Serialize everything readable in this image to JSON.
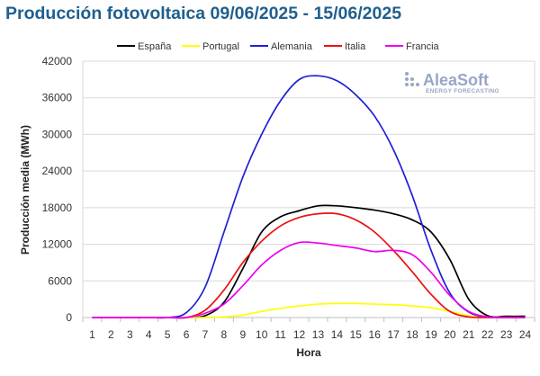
{
  "title": "Producción fotovoltaica 09/06/2025 - 15/06/2025",
  "logo": {
    "name": "AleaSoft",
    "tagline": "ENERGY FORECASTING"
  },
  "chart_data": {
    "type": "line",
    "xlabel": "Hora",
    "ylabel": "Producción media (MWh)",
    "ylim": [
      0,
      42000
    ],
    "yticks": [
      0,
      6000,
      12000,
      18000,
      24000,
      30000,
      36000,
      42000
    ],
    "ytick_labels": [
      "0",
      "6000",
      "12000",
      "18000",
      "24000",
      "30000",
      "36000",
      "42000"
    ],
    "x": [
      1,
      2,
      3,
      4,
      5,
      6,
      7,
      8,
      9,
      10,
      11,
      12,
      13,
      14,
      15,
      16,
      17,
      18,
      19,
      20,
      21,
      22,
      23,
      24
    ],
    "x_labels": [
      "1",
      "2",
      "3",
      "4",
      "5",
      "6",
      "7",
      "8",
      "9",
      "10",
      "11",
      "12",
      "13",
      "14",
      "15",
      "16",
      "17",
      "18",
      "19",
      "20",
      "21",
      "22",
      "23",
      "24"
    ],
    "grid": true,
    "legend_position": "top",
    "series": [
      {
        "name": "España",
        "color": "#000000",
        "values": [
          0,
          0,
          0,
          0,
          0,
          0,
          300,
          2500,
          8000,
          14000,
          16500,
          17500,
          18300,
          18300,
          18000,
          17600,
          17000,
          16000,
          14000,
          9500,
          3000,
          300,
          200,
          200
        ]
      },
      {
        "name": "Portugal",
        "color": "#ffff00",
        "values": [
          0,
          0,
          0,
          0,
          0,
          0,
          0,
          100,
          400,
          1000,
          1500,
          1900,
          2200,
          2300,
          2300,
          2200,
          2100,
          1900,
          1600,
          1000,
          300,
          50,
          0,
          0
        ]
      },
      {
        "name": "Alemania",
        "color": "#1f1fd6",
        "values": [
          0,
          0,
          0,
          0,
          0,
          800,
          5000,
          14000,
          23000,
          30000,
          35500,
          39000,
          39600,
          38800,
          36500,
          33000,
          27500,
          20000,
          11000,
          4000,
          900,
          100,
          0,
          0
        ]
      },
      {
        "name": "Italia",
        "color": "#ee1111",
        "values": [
          0,
          0,
          0,
          0,
          0,
          0,
          1200,
          4500,
          9000,
          12500,
          15000,
          16400,
          17000,
          17000,
          16000,
          14000,
          11000,
          7500,
          3800,
          1000,
          100,
          0,
          0,
          0
        ]
      },
      {
        "name": "Francia",
        "color": "#ee00ee",
        "values": [
          0,
          0,
          0,
          0,
          0,
          0,
          700,
          2200,
          5200,
          8600,
          11000,
          12300,
          12200,
          11800,
          11400,
          10800,
          11000,
          10300,
          7400,
          3600,
          1000,
          100,
          0,
          0
        ]
      }
    ]
  }
}
